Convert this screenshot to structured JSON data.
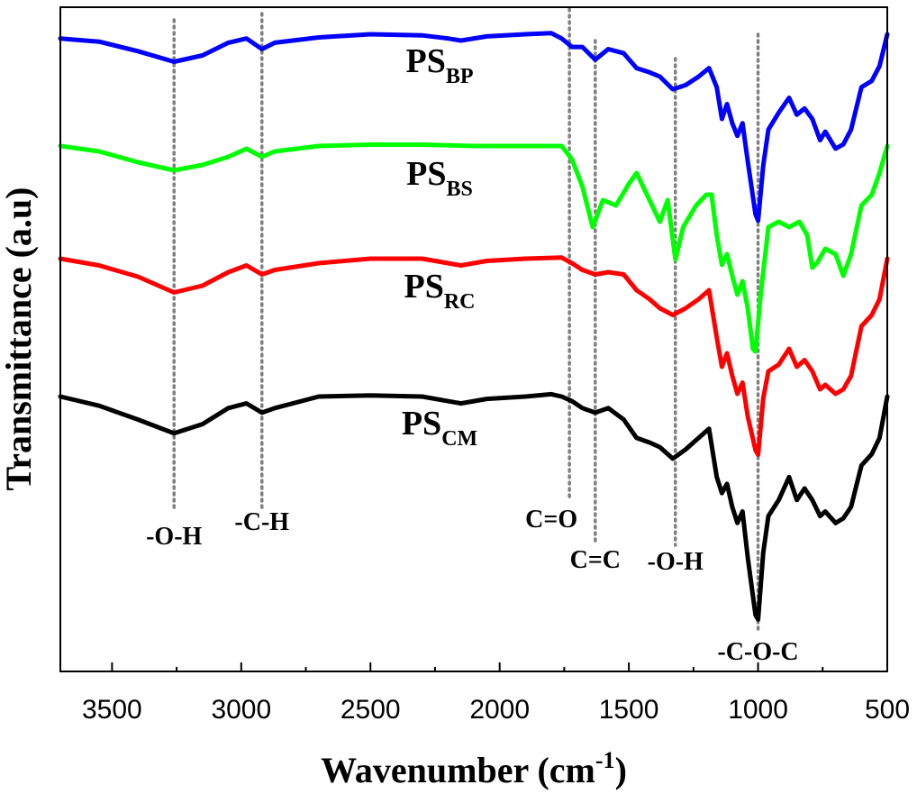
{
  "chart_data": {
    "type": "line",
    "title": "",
    "xlabel_main": "Wavenumber (cm",
    "xlabel_sup": "-1",
    "xlabel_close": ")",
    "ylabel": "Transmittance (a.u)",
    "xlim": [
      3700,
      500
    ],
    "x_reversed": true,
    "y_ticks_shown": false,
    "x_ticks": [
      3500,
      3000,
      2500,
      2000,
      1500,
      1000,
      500
    ],
    "series": [
      {
        "name": "PS_BP",
        "label_main": "PS",
        "label_sub": "BP",
        "color": "#0000ff",
        "offset": 0,
        "points": [
          [
            3700,
            0.02
          ],
          [
            3550,
            0.035
          ],
          [
            3400,
            0.08
          ],
          [
            3260,
            0.13
          ],
          [
            3150,
            0.1
          ],
          [
            3050,
            0.04
          ],
          [
            2980,
            0.02
          ],
          [
            2920,
            0.07
          ],
          [
            2870,
            0.04
          ],
          [
            2700,
            0.015
          ],
          [
            2500,
            0.0
          ],
          [
            2300,
            0.005
          ],
          [
            2200,
            0.02
          ],
          [
            2150,
            0.03
          ],
          [
            2050,
            0.01
          ],
          [
            1900,
            0.0
          ],
          [
            1800,
            -0.005
          ],
          [
            1760,
            0.02
          ],
          [
            1720,
            0.06
          ],
          [
            1680,
            0.06
          ],
          [
            1630,
            0.12
          ],
          [
            1580,
            0.07
          ],
          [
            1520,
            0.09
          ],
          [
            1470,
            0.16
          ],
          [
            1420,
            0.18
          ],
          [
            1380,
            0.2
          ],
          [
            1330,
            0.26
          ],
          [
            1280,
            0.24
          ],
          [
            1230,
            0.2
          ],
          [
            1190,
            0.16
          ],
          [
            1160,
            0.25
          ],
          [
            1140,
            0.4
          ],
          [
            1120,
            0.33
          ],
          [
            1100,
            0.42
          ],
          [
            1080,
            0.48
          ],
          [
            1060,
            0.42
          ],
          [
            1040,
            0.6
          ],
          [
            1010,
            0.85
          ],
          [
            1000,
            0.88
          ],
          [
            980,
            0.62
          ],
          [
            960,
            0.45
          ],
          [
            920,
            0.37
          ],
          [
            880,
            0.3
          ],
          [
            850,
            0.38
          ],
          [
            820,
            0.35
          ],
          [
            790,
            0.4
          ],
          [
            760,
            0.5
          ],
          [
            740,
            0.46
          ],
          [
            700,
            0.54
          ],
          [
            670,
            0.52
          ],
          [
            640,
            0.45
          ],
          [
            600,
            0.25
          ],
          [
            560,
            0.22
          ],
          [
            530,
            0.15
          ],
          [
            500,
            0.0
          ]
        ]
      },
      {
        "name": "PS_BS",
        "label_main": "PS",
        "label_sub": "BS",
        "color": "#00ff00",
        "offset": 0,
        "points": [
          [
            3700,
            0.0
          ],
          [
            3550,
            0.02
          ],
          [
            3400,
            0.06
          ],
          [
            3260,
            0.09
          ],
          [
            3150,
            0.07
          ],
          [
            3050,
            0.04
          ],
          [
            2980,
            0.01
          ],
          [
            2920,
            0.04
          ],
          [
            2870,
            0.02
          ],
          [
            2700,
            0.0
          ],
          [
            2500,
            -0.005
          ],
          [
            2300,
            -0.005
          ],
          [
            2100,
            0.0
          ],
          [
            1900,
            0.0
          ],
          [
            1760,
            0.0
          ],
          [
            1720,
            0.05
          ],
          [
            1680,
            0.15
          ],
          [
            1640,
            0.3
          ],
          [
            1600,
            0.2
          ],
          [
            1550,
            0.22
          ],
          [
            1500,
            0.14
          ],
          [
            1470,
            0.1
          ],
          [
            1430,
            0.18
          ],
          [
            1380,
            0.28
          ],
          [
            1350,
            0.2
          ],
          [
            1320,
            0.42
          ],
          [
            1290,
            0.3
          ],
          [
            1240,
            0.22
          ],
          [
            1200,
            0.18
          ],
          [
            1180,
            0.18
          ],
          [
            1160,
            0.33
          ],
          [
            1140,
            0.44
          ],
          [
            1120,
            0.4
          ],
          [
            1100,
            0.48
          ],
          [
            1080,
            0.55
          ],
          [
            1060,
            0.5
          ],
          [
            1040,
            0.6
          ],
          [
            1020,
            0.75
          ],
          [
            1010,
            0.76
          ],
          [
            990,
            0.55
          ],
          [
            960,
            0.3
          ],
          [
            920,
            0.28
          ],
          [
            880,
            0.3
          ],
          [
            840,
            0.28
          ],
          [
            810,
            0.33
          ],
          [
            790,
            0.45
          ],
          [
            770,
            0.43
          ],
          [
            740,
            0.38
          ],
          [
            700,
            0.4
          ],
          [
            670,
            0.48
          ],
          [
            640,
            0.4
          ],
          [
            600,
            0.22
          ],
          [
            560,
            0.18
          ],
          [
            530,
            0.1
          ],
          [
            500,
            0.0
          ]
        ]
      },
      {
        "name": "PS_RC",
        "label_main": "PS",
        "label_sub": "RC",
        "color": "#ff0000",
        "offset": 0,
        "points": [
          [
            3700,
            0.0
          ],
          [
            3550,
            0.03
          ],
          [
            3400,
            0.08
          ],
          [
            3260,
            0.15
          ],
          [
            3150,
            0.12
          ],
          [
            3050,
            0.06
          ],
          [
            2980,
            0.03
          ],
          [
            2920,
            0.07
          ],
          [
            2870,
            0.05
          ],
          [
            2700,
            0.02
          ],
          [
            2500,
            0.0
          ],
          [
            2300,
            0.0
          ],
          [
            2200,
            0.02
          ],
          [
            2150,
            0.03
          ],
          [
            2050,
            0.01
          ],
          [
            1900,
            0.0
          ],
          [
            1760,
            -0.005
          ],
          [
            1720,
            0.02
          ],
          [
            1680,
            0.05
          ],
          [
            1630,
            0.07
          ],
          [
            1580,
            0.06
          ],
          [
            1520,
            0.07
          ],
          [
            1470,
            0.14
          ],
          [
            1420,
            0.18
          ],
          [
            1380,
            0.22
          ],
          [
            1330,
            0.25
          ],
          [
            1280,
            0.22
          ],
          [
            1230,
            0.18
          ],
          [
            1190,
            0.14
          ],
          [
            1160,
            0.35
          ],
          [
            1140,
            0.48
          ],
          [
            1120,
            0.42
          ],
          [
            1100,
            0.52
          ],
          [
            1080,
            0.6
          ],
          [
            1060,
            0.55
          ],
          [
            1040,
            0.7
          ],
          [
            1010,
            0.85
          ],
          [
            1000,
            0.87
          ],
          [
            980,
            0.62
          ],
          [
            960,
            0.5
          ],
          [
            920,
            0.47
          ],
          [
            880,
            0.4
          ],
          [
            850,
            0.48
          ],
          [
            820,
            0.45
          ],
          [
            790,
            0.5
          ],
          [
            760,
            0.58
          ],
          [
            740,
            0.56
          ],
          [
            700,
            0.6
          ],
          [
            670,
            0.58
          ],
          [
            640,
            0.52
          ],
          [
            600,
            0.3
          ],
          [
            560,
            0.25
          ],
          [
            530,
            0.18
          ],
          [
            500,
            0.0
          ]
        ]
      },
      {
        "name": "PS_CM",
        "label_main": "PS",
        "label_sub": "CM",
        "color": "#000000",
        "offset": 0,
        "points": [
          [
            3700,
            0.0
          ],
          [
            3550,
            0.04
          ],
          [
            3400,
            0.1
          ],
          [
            3260,
            0.16
          ],
          [
            3150,
            0.12
          ],
          [
            3050,
            0.05
          ],
          [
            2980,
            0.03
          ],
          [
            2920,
            0.07
          ],
          [
            2870,
            0.05
          ],
          [
            2700,
            0.0
          ],
          [
            2500,
            -0.005
          ],
          [
            2300,
            0.0
          ],
          [
            2200,
            0.02
          ],
          [
            2150,
            0.03
          ],
          [
            2050,
            0.01
          ],
          [
            1900,
            0.0
          ],
          [
            1800,
            -0.01
          ],
          [
            1760,
            0.0
          ],
          [
            1720,
            0.02
          ],
          [
            1680,
            0.05
          ],
          [
            1630,
            0.07
          ],
          [
            1580,
            0.05
          ],
          [
            1520,
            0.1
          ],
          [
            1470,
            0.18
          ],
          [
            1420,
            0.2
          ],
          [
            1380,
            0.22
          ],
          [
            1330,
            0.27
          ],
          [
            1280,
            0.23
          ],
          [
            1230,
            0.18
          ],
          [
            1190,
            0.14
          ],
          [
            1160,
            0.35
          ],
          [
            1140,
            0.42
          ],
          [
            1120,
            0.38
          ],
          [
            1100,
            0.48
          ],
          [
            1080,
            0.55
          ],
          [
            1060,
            0.5
          ],
          [
            1040,
            0.7
          ],
          [
            1010,
            0.95
          ],
          [
            1000,
            0.97
          ],
          [
            980,
            0.68
          ],
          [
            960,
            0.52
          ],
          [
            920,
            0.45
          ],
          [
            880,
            0.35
          ],
          [
            850,
            0.45
          ],
          [
            820,
            0.4
          ],
          [
            790,
            0.45
          ],
          [
            760,
            0.52
          ],
          [
            740,
            0.5
          ],
          [
            700,
            0.55
          ],
          [
            670,
            0.53
          ],
          [
            640,
            0.48
          ],
          [
            600,
            0.3
          ],
          [
            560,
            0.25
          ],
          [
            530,
            0.18
          ],
          [
            500,
            0.0
          ]
        ]
      }
    ],
    "annotations": [
      {
        "text": "-O-H",
        "x": 3260
      },
      {
        "text": "-C-H",
        "x": 2920
      },
      {
        "text": "C=O",
        "x": 1730
      },
      {
        "text": "C=C",
        "x": 1630
      },
      {
        "text": "-O-H",
        "x": 1320
      },
      {
        "text": "-C-O-C",
        "x": 1000
      }
    ]
  }
}
